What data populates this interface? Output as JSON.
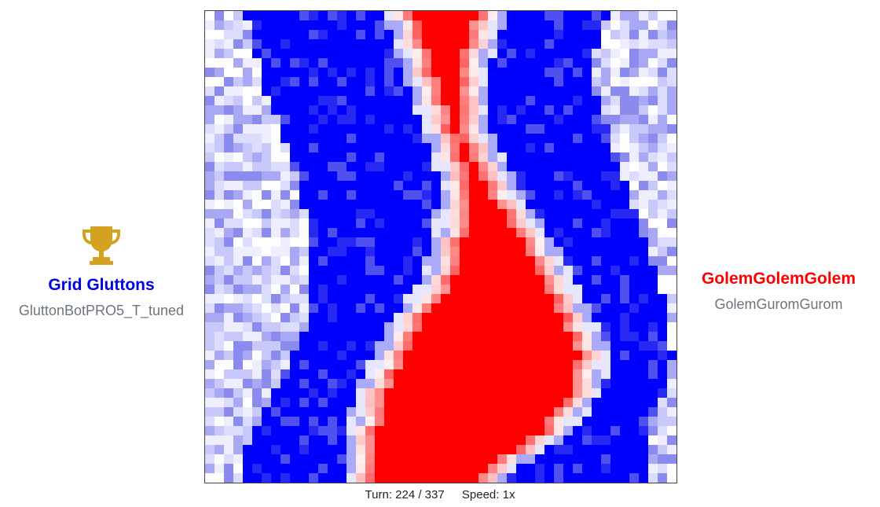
{
  "board": {
    "grid_size": 50,
    "colors": {
      "blue": "#0000ff",
      "red": "#ff0000",
      "empty": "#ffffff"
    }
  },
  "players": {
    "left": {
      "team_name": "Grid Gluttons",
      "bot_name": "GluttonBotPRO5_T_tuned",
      "team_color": "#0000e6",
      "bot_color": "#6c757d",
      "winner": true,
      "winner_icon": "trophy-icon",
      "trophy_color": "#d4a21e"
    },
    "right": {
      "team_name": "GolemGolemGolem",
      "bot_name": "GolemGuromGurom",
      "team_color": "#ff0000",
      "bot_color": "#6c757d",
      "winner": false
    }
  },
  "status": {
    "turn_label": "Turn: 224 / 337",
    "speed_label": "Speed: 1x"
  }
}
